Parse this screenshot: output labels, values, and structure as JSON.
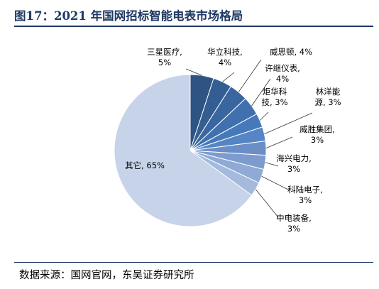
{
  "header": {
    "title": "图17：2021 年国网招标智能电表市场格局"
  },
  "footer": {
    "source": "数据来源：国网官网，东吴证券研究所"
  },
  "chart_data": {
    "type": "pie",
    "title": "图17：2021 年国网招标智能电表市场格局",
    "unit": "%",
    "slices": [
      {
        "name": "三星医疗",
        "value": 5,
        "label_lines": [
          "三星医疗,",
          "5%"
        ],
        "color": "#2e5484"
      },
      {
        "name": "华立科技",
        "value": 4,
        "label_lines": [
          "华立科技,",
          "4%"
        ],
        "color": "#345d92"
      },
      {
        "name": "威思顿",
        "value": 4,
        "label_lines": [
          "威思顿, 4%"
        ],
        "color": "#3a66a0"
      },
      {
        "name": "许继仪表",
        "value": 4,
        "label_lines": [
          "许继仪表,",
          "4%"
        ],
        "color": "#4070ae"
      },
      {
        "name": "炬华科技",
        "value": 3,
        "label_lines": [
          "炬华科",
          "技, 3%"
        ],
        "color": "#4679ba"
      },
      {
        "name": "林洋能源",
        "value": 3,
        "label_lines": [
          "林洋能",
          "源, 3%"
        ],
        "color": "#5585c4"
      },
      {
        "name": "威胜集团",
        "value": 3,
        "label_lines": [
          "威胜集团,",
          "3%"
        ],
        "color": "#6b8ec6"
      },
      {
        "name": "海兴电力",
        "value": 3,
        "label_lines": [
          "海兴电力,",
          "3%"
        ],
        "color": "#7d9ccd"
      },
      {
        "name": "科陆电子",
        "value": 3,
        "label_lines": [
          "科陆电子,",
          "3%"
        ],
        "color": "#8eaad5"
      },
      {
        "name": "中电装备",
        "value": 3,
        "label_lines": [
          "中电装备,",
          "3%"
        ],
        "color": "#a3badd"
      },
      {
        "name": "其它",
        "value": 65,
        "label_lines": [
          "其它, 65%"
        ],
        "color": "#c6d3e9"
      }
    ]
  }
}
